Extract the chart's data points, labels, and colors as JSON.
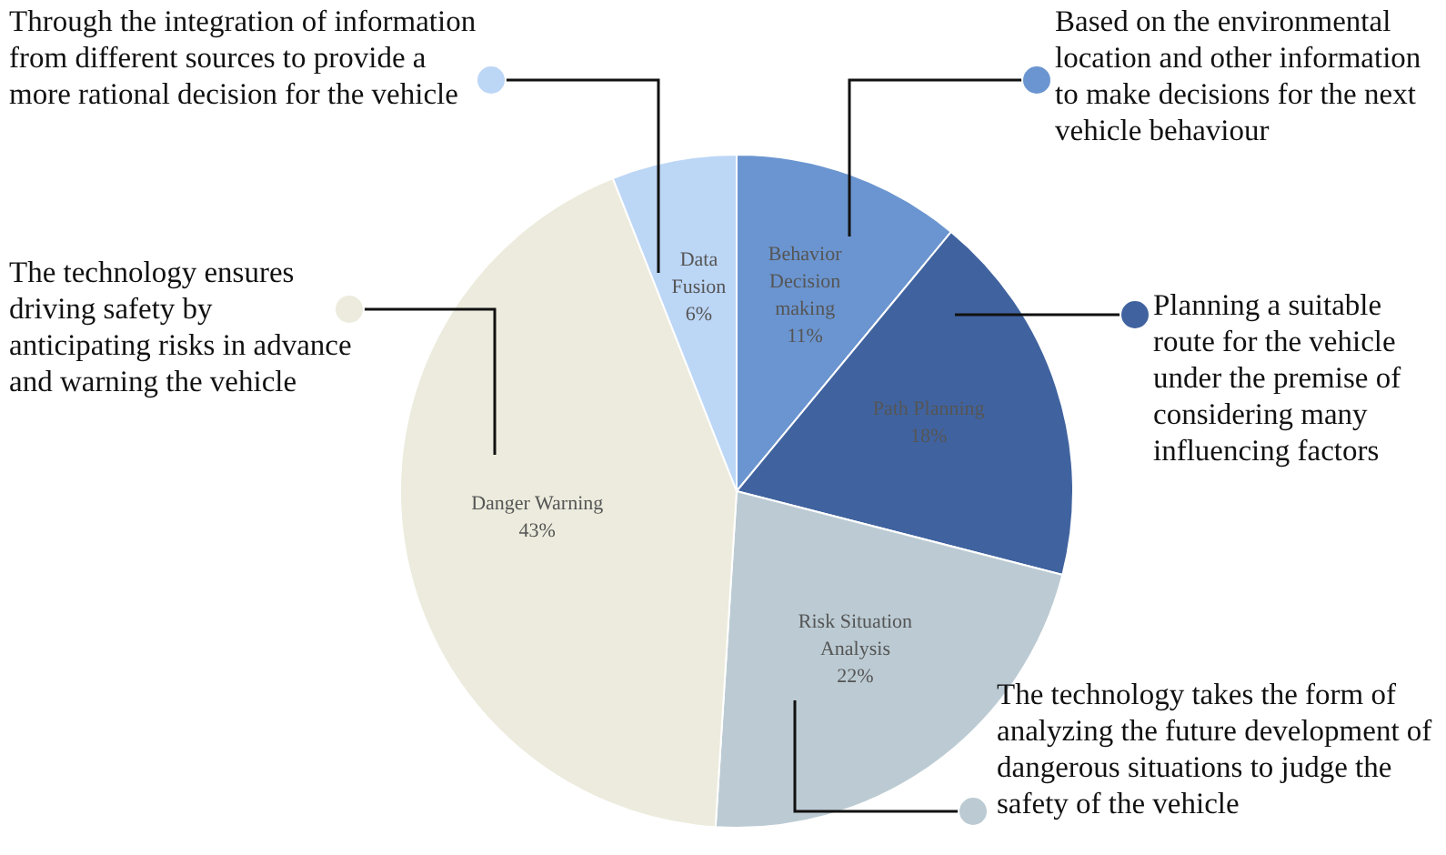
{
  "chart_data": {
    "type": "pie",
    "categories": [
      "Behavior Decision making",
      "Path Planning",
      "Risk Situation Analysis",
      "Danger Warning",
      "Data Fusion"
    ],
    "values": [
      11,
      18,
      22,
      43,
      6
    ],
    "value_labels": [
      "11%",
      "18%",
      "22%",
      "43%",
      "6%"
    ],
    "colors": [
      "#6b95d0",
      "#40639f",
      "#bccbd3",
      "#ecebdd",
      "#bcd6f6"
    ],
    "annotations": [
      "Through the integration of information from different sources to provide a more rational decision for the vehicle",
      "Based on the environmental location and other information to make decisions for the next vehicle behaviour",
      "The technology ensures driving safety by anticipating risks in advance and warning the vehicle",
      "Planning a suitable route for the vehicle under the premise of considering many influencing factors",
      "The technology takes the form of analyzing the future development of dangerous situations to judge the safety of the vehicle"
    ],
    "legend": false
  }
}
